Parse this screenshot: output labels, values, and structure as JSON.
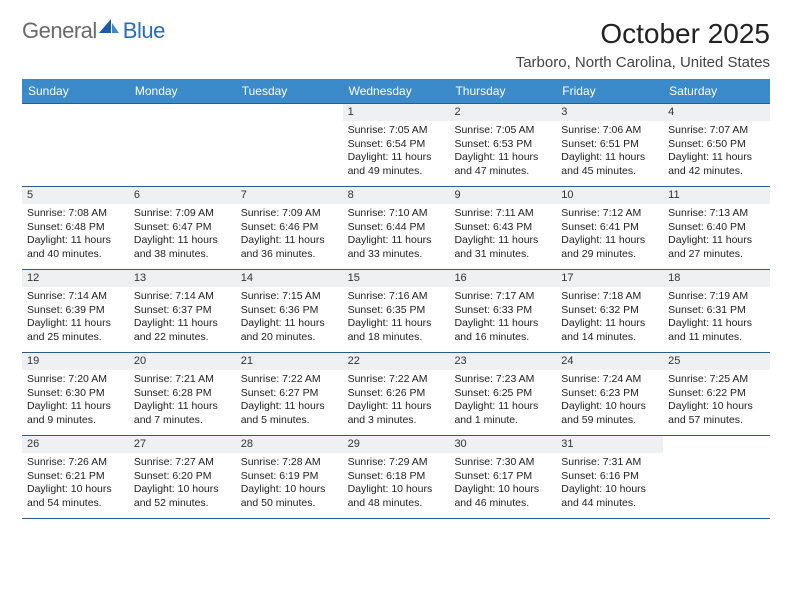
{
  "logo": {
    "text1": "General",
    "text2": "Blue"
  },
  "title": "October 2025",
  "location": "Tarboro, North Carolina, United States",
  "colors": {
    "header_bg": "#3b8bca",
    "header_text": "#ffffff",
    "row_border": "#2c5a8a",
    "daynum_bg": "#eef0f1",
    "logo_gray": "#6a6a6a",
    "logo_blue": "#2a6db8"
  },
  "weekdays": [
    "Sunday",
    "Monday",
    "Tuesday",
    "Wednesday",
    "Thursday",
    "Friday",
    "Saturday"
  ],
  "weeks": [
    [
      null,
      null,
      null,
      {
        "n": "1",
        "sr": "7:05 AM",
        "ss": "6:54 PM",
        "dl": "11 hours and 49 minutes."
      },
      {
        "n": "2",
        "sr": "7:05 AM",
        "ss": "6:53 PM",
        "dl": "11 hours and 47 minutes."
      },
      {
        "n": "3",
        "sr": "7:06 AM",
        "ss": "6:51 PM",
        "dl": "11 hours and 45 minutes."
      },
      {
        "n": "4",
        "sr": "7:07 AM",
        "ss": "6:50 PM",
        "dl": "11 hours and 42 minutes."
      }
    ],
    [
      {
        "n": "5",
        "sr": "7:08 AM",
        "ss": "6:48 PM",
        "dl": "11 hours and 40 minutes."
      },
      {
        "n": "6",
        "sr": "7:09 AM",
        "ss": "6:47 PM",
        "dl": "11 hours and 38 minutes."
      },
      {
        "n": "7",
        "sr": "7:09 AM",
        "ss": "6:46 PM",
        "dl": "11 hours and 36 minutes."
      },
      {
        "n": "8",
        "sr": "7:10 AM",
        "ss": "6:44 PM",
        "dl": "11 hours and 33 minutes."
      },
      {
        "n": "9",
        "sr": "7:11 AM",
        "ss": "6:43 PM",
        "dl": "11 hours and 31 minutes."
      },
      {
        "n": "10",
        "sr": "7:12 AM",
        "ss": "6:41 PM",
        "dl": "11 hours and 29 minutes."
      },
      {
        "n": "11",
        "sr": "7:13 AM",
        "ss": "6:40 PM",
        "dl": "11 hours and 27 minutes."
      }
    ],
    [
      {
        "n": "12",
        "sr": "7:14 AM",
        "ss": "6:39 PM",
        "dl": "11 hours and 25 minutes."
      },
      {
        "n": "13",
        "sr": "7:14 AM",
        "ss": "6:37 PM",
        "dl": "11 hours and 22 minutes."
      },
      {
        "n": "14",
        "sr": "7:15 AM",
        "ss": "6:36 PM",
        "dl": "11 hours and 20 minutes."
      },
      {
        "n": "15",
        "sr": "7:16 AM",
        "ss": "6:35 PM",
        "dl": "11 hours and 18 minutes."
      },
      {
        "n": "16",
        "sr": "7:17 AM",
        "ss": "6:33 PM",
        "dl": "11 hours and 16 minutes."
      },
      {
        "n": "17",
        "sr": "7:18 AM",
        "ss": "6:32 PM",
        "dl": "11 hours and 14 minutes."
      },
      {
        "n": "18",
        "sr": "7:19 AM",
        "ss": "6:31 PM",
        "dl": "11 hours and 11 minutes."
      }
    ],
    [
      {
        "n": "19",
        "sr": "7:20 AM",
        "ss": "6:30 PM",
        "dl": "11 hours and 9 minutes."
      },
      {
        "n": "20",
        "sr": "7:21 AM",
        "ss": "6:28 PM",
        "dl": "11 hours and 7 minutes."
      },
      {
        "n": "21",
        "sr": "7:22 AM",
        "ss": "6:27 PM",
        "dl": "11 hours and 5 minutes."
      },
      {
        "n": "22",
        "sr": "7:22 AM",
        "ss": "6:26 PM",
        "dl": "11 hours and 3 minutes."
      },
      {
        "n": "23",
        "sr": "7:23 AM",
        "ss": "6:25 PM",
        "dl": "11 hours and 1 minute."
      },
      {
        "n": "24",
        "sr": "7:24 AM",
        "ss": "6:23 PM",
        "dl": "10 hours and 59 minutes."
      },
      {
        "n": "25",
        "sr": "7:25 AM",
        "ss": "6:22 PM",
        "dl": "10 hours and 57 minutes."
      }
    ],
    [
      {
        "n": "26",
        "sr": "7:26 AM",
        "ss": "6:21 PM",
        "dl": "10 hours and 54 minutes."
      },
      {
        "n": "27",
        "sr": "7:27 AM",
        "ss": "6:20 PM",
        "dl": "10 hours and 52 minutes."
      },
      {
        "n": "28",
        "sr": "7:28 AM",
        "ss": "6:19 PM",
        "dl": "10 hours and 50 minutes."
      },
      {
        "n": "29",
        "sr": "7:29 AM",
        "ss": "6:18 PM",
        "dl": "10 hours and 48 minutes."
      },
      {
        "n": "30",
        "sr": "7:30 AM",
        "ss": "6:17 PM",
        "dl": "10 hours and 46 minutes."
      },
      {
        "n": "31",
        "sr": "7:31 AM",
        "ss": "6:16 PM",
        "dl": "10 hours and 44 minutes."
      },
      null
    ]
  ],
  "labels": {
    "sunrise": "Sunrise:",
    "sunset": "Sunset:",
    "daylight": "Daylight:"
  }
}
